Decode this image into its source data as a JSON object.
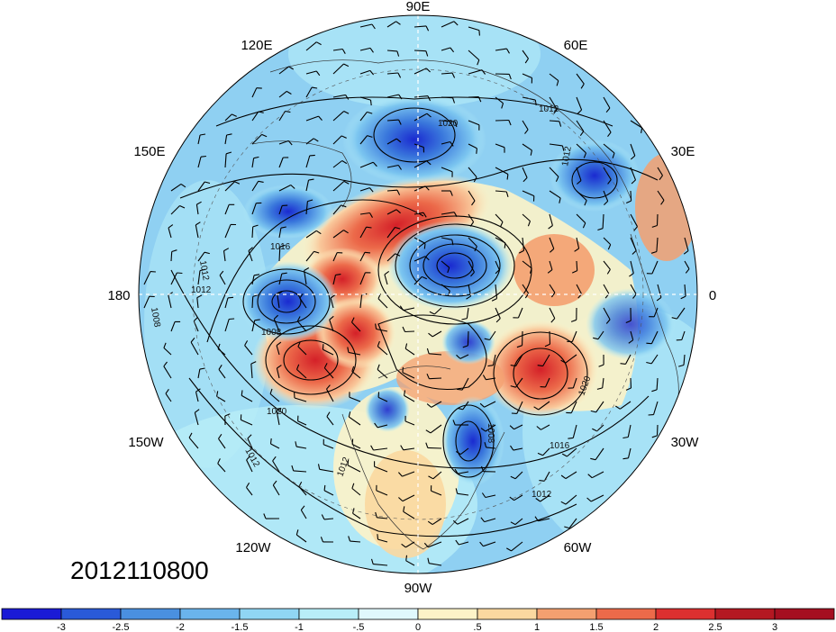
{
  "map": {
    "projection": "polar stereographic (north pole)",
    "longitude_labels": [
      "90E",
      "60E",
      "30E",
      "0",
      "30W",
      "60W",
      "90W",
      "120W",
      "150W",
      "180",
      "150E",
      "120E"
    ],
    "isobar_labels": [
      "1020",
      "1012",
      "1012",
      "1016",
      "1012",
      "1012",
      "1008",
      "1008",
      "1020",
      "1008",
      "1016",
      "1020",
      "1012",
      "1012",
      "1012"
    ],
    "timestamp": "2012110800"
  },
  "colorbar": {
    "tick_labels": [
      "-3",
      "-2.5",
      "-2",
      "-1.5",
      "-1",
      "-.5",
      "0",
      ".5",
      "1",
      "1.5",
      "2",
      "2.5",
      "3"
    ],
    "colors": [
      "#1a1ad6",
      "#2a5ad8",
      "#4a90e0",
      "#6ab4ec",
      "#90d6f4",
      "#b8eef8",
      "#e0f8fc",
      "#fdf3c8",
      "#fbd8a0",
      "#f4a070",
      "#ec6a4a",
      "#dc3030",
      "#b41822",
      "#a50f20"
    ]
  }
}
